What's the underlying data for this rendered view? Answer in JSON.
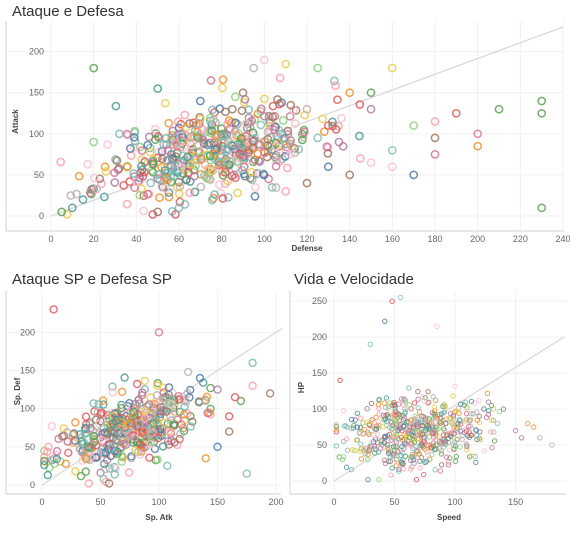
{
  "colors": [
    "#4e79a7",
    "#f28e2b",
    "#e15759",
    "#76b7b2",
    "#59a14f",
    "#edc948",
    "#b07aa1",
    "#ff9da7",
    "#9c755f",
    "#bab0ac",
    "#8cd17d",
    "#499894",
    "#d37295",
    "#fabfd2",
    "#86bcb6"
  ],
  "chart_data": [
    {
      "type": "scatter",
      "title": "Ataque e Defesa",
      "xlabel": "Defense",
      "ylabel": "Attack",
      "xlim": [
        0,
        240
      ],
      "ylim": [
        0,
        230
      ],
      "xticks": [
        0,
        20,
        40,
        60,
        80,
        100,
        120,
        140,
        160,
        180,
        200,
        220,
        240
      ],
      "yticks": [
        0,
        50,
        100,
        150,
        200
      ],
      "grid": true,
      "reference_line": [
        [
          0,
          0
        ],
        [
          240,
          230
        ]
      ],
      "marker": "hollow-circle",
      "cluster": {
        "x_mean": 75,
        "x_sd": 25,
        "y_mean": 80,
        "y_sd": 30,
        "corr": 0.45,
        "count": 520,
        "seed": 11
      },
      "points": [
        [
          5,
          5
        ],
        [
          10,
          10
        ],
        [
          15,
          20
        ],
        [
          20,
          180
        ],
        [
          20,
          90
        ],
        [
          50,
          155
        ],
        [
          50,
          5
        ],
        [
          60,
          10
        ],
        [
          70,
          140
        ],
        [
          75,
          165
        ],
        [
          85,
          130
        ],
        [
          90,
          150
        ],
        [
          95,
          180
        ],
        [
          100,
          190
        ],
        [
          110,
          185
        ],
        [
          120,
          130
        ],
        [
          125,
          180
        ],
        [
          130,
          110
        ],
        [
          140,
          150
        ],
        [
          150,
          150
        ],
        [
          160,
          180
        ],
        [
          160,
          80
        ],
        [
          170,
          110
        ],
        [
          170,
          50
        ],
        [
          180,
          95
        ],
        [
          180,
          75
        ],
        [
          180,
          115
        ],
        [
          190,
          125
        ],
        [
          200,
          100
        ],
        [
          200,
          85
        ],
        [
          210,
          130
        ],
        [
          230,
          140
        ],
        [
          230,
          125
        ],
        [
          230,
          10
        ],
        [
          150,
          130
        ],
        [
          145,
          70
        ],
        [
          130,
          60
        ],
        [
          120,
          40
        ],
        [
          110,
          30
        ],
        [
          160,
          60
        ],
        [
          150,
          65
        ],
        [
          140,
          50
        ],
        [
          135,
          90
        ],
        [
          125,
          95
        ]
      ]
    },
    {
      "type": "scatter",
      "title": "Ataque SP e Defesa SP",
      "xlabel": "Sp. Atk",
      "ylabel": "Sp. Def",
      "xlim": [
        0,
        200
      ],
      "ylim": [
        0,
        245
      ],
      "xticks": [
        0,
        50,
        100,
        150,
        200
      ],
      "yticks": [
        0,
        50,
        100,
        150,
        200
      ],
      "grid": true,
      "reference_line": [
        [
          0,
          0
        ],
        [
          205,
          205
        ]
      ],
      "marker": "hollow-circle",
      "cluster": {
        "x_mean": 72,
        "x_sd": 30,
        "y_mean": 72,
        "y_sd": 26,
        "corr": 0.5,
        "count": 450,
        "seed": 23
      },
      "points": [
        [
          10,
          230
        ],
        [
          100,
          200
        ],
        [
          180,
          160
        ],
        [
          175,
          15
        ],
        [
          195,
          120
        ],
        [
          170,
          110
        ],
        [
          180,
          130
        ],
        [
          160,
          90
        ],
        [
          150,
          50
        ],
        [
          140,
          35
        ],
        [
          160,
          70
        ],
        [
          150,
          125
        ],
        [
          135,
          140
        ],
        [
          140,
          110
        ],
        [
          165,
          115
        ]
      ]
    },
    {
      "type": "scatter",
      "title": "Vida e Velocidade",
      "xlabel": "Speed",
      "ylabel": "HP",
      "xlim": [
        0,
        190
      ],
      "ylim": [
        0,
        260
      ],
      "xticks": [
        0,
        50,
        100,
        150
      ],
      "yticks": [
        0,
        50,
        100,
        150,
        200,
        250
      ],
      "grid": true,
      "reference_line": [
        [
          0,
          0
        ],
        [
          190,
          200
        ]
      ],
      "marker": "hollow-circle-small",
      "cluster": {
        "x_mean": 68,
        "x_sd": 28,
        "y_mean": 70,
        "y_sd": 25,
        "corr": 0.15,
        "count": 560,
        "seed": 37
      },
      "points": [
        [
          48,
          250
        ],
        [
          55,
          255
        ],
        [
          42,
          222
        ],
        [
          85,
          215
        ],
        [
          30,
          190
        ],
        [
          5,
          140
        ],
        [
          180,
          50
        ],
        [
          160,
          80
        ],
        [
          150,
          70
        ],
        [
          140,
          100
        ],
        [
          130,
          105
        ],
        [
          155,
          60
        ],
        [
          120,
          90
        ],
        [
          170,
          60
        ],
        [
          165,
          75
        ]
      ]
    }
  ]
}
